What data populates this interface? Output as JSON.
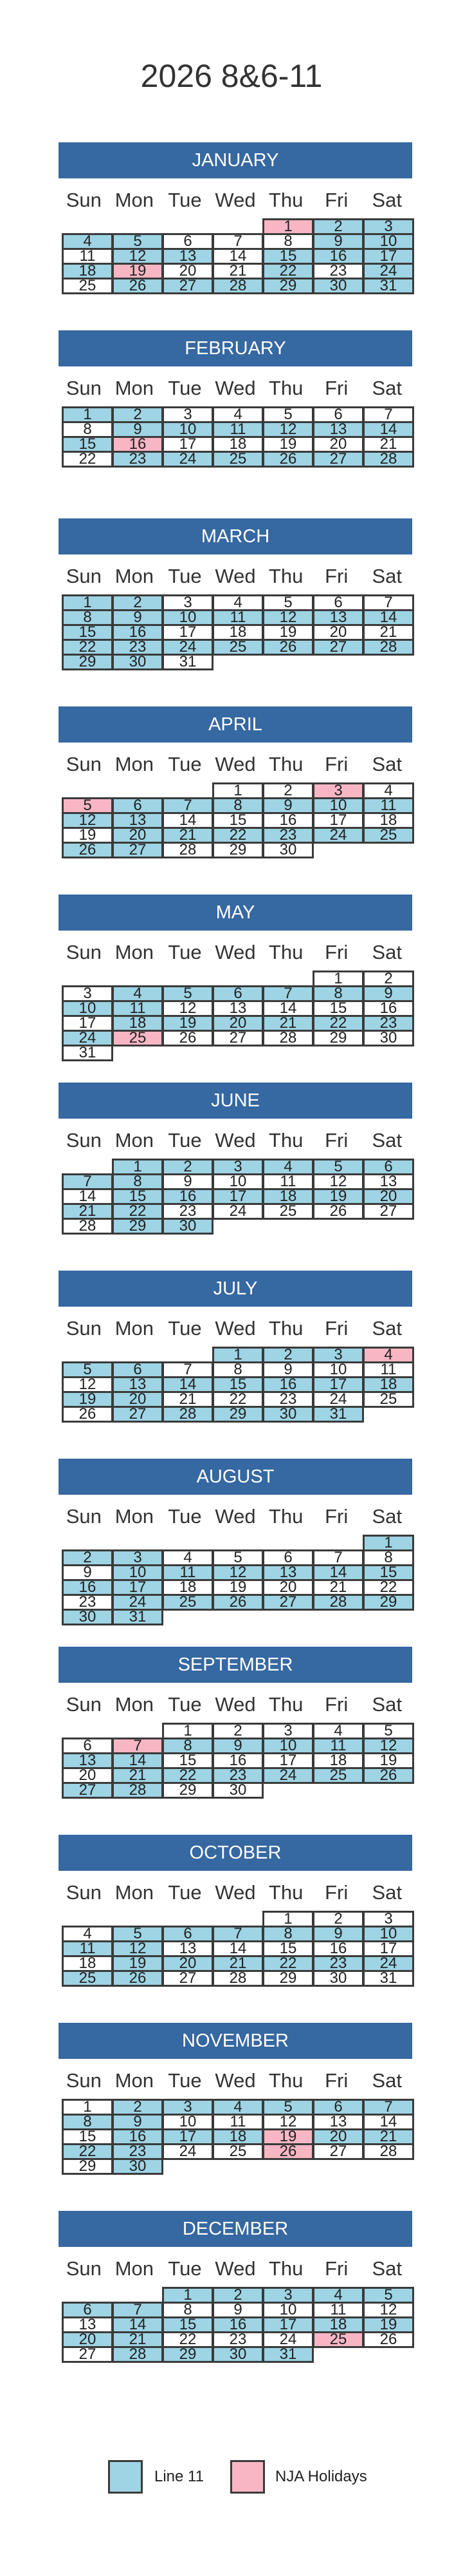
{
  "title": "2026 8&6-11",
  "weekdays": [
    "Sun",
    "Mon",
    "Tue",
    "Wed",
    "Thu",
    "Fri",
    "Sat"
  ],
  "colors": {
    "header": "#3668a1",
    "line": "#9ed4e4",
    "holiday": "#f8b6c4"
  },
  "legend": {
    "line_label": "Line 11",
    "holiday_label": "NJA Holidays"
  },
  "months": [
    {
      "name": "JANUARY",
      "start": 4,
      "days": 31,
      "line": [
        2,
        3,
        4,
        5,
        9,
        10,
        12,
        13,
        15,
        16,
        17,
        18,
        22,
        24,
        26,
        27,
        28,
        29,
        30,
        31
      ],
      "holidays": [
        1,
        19
      ]
    },
    {
      "name": "FEBRUARY",
      "start": 0,
      "days": 28,
      "line": [
        1,
        2,
        9,
        10,
        11,
        12,
        13,
        14,
        15,
        23,
        24,
        25,
        26,
        27,
        28
      ],
      "holidays": [
        16
      ]
    },
    {
      "name": "MARCH",
      "start": 0,
      "days": 31,
      "line": [
        1,
        2,
        8,
        9,
        10,
        11,
        12,
        13,
        14,
        15,
        16,
        22,
        23,
        24,
        25,
        26,
        27,
        28,
        29,
        30
      ],
      "holidays": []
    },
    {
      "name": "APRIL",
      "start": 3,
      "days": 30,
      "line": [
        6,
        7,
        8,
        9,
        10,
        11,
        12,
        13,
        20,
        21,
        22,
        23,
        24,
        25,
        26,
        27
      ],
      "holidays": [
        3,
        5
      ]
    },
    {
      "name": "MAY",
      "start": 5,
      "days": 31,
      "line": [
        4,
        5,
        6,
        7,
        8,
        9,
        10,
        11,
        18,
        19,
        20,
        21,
        22,
        23,
        24
      ],
      "holidays": [
        25
      ]
    },
    {
      "name": "JUNE",
      "start": 1,
      "days": 30,
      "line": [
        1,
        2,
        3,
        4,
        5,
        6,
        7,
        8,
        15,
        16,
        17,
        18,
        19,
        20,
        21,
        22,
        29,
        30
      ],
      "holidays": []
    },
    {
      "name": "JULY",
      "start": 3,
      "days": 31,
      "line": [
        1,
        2,
        3,
        5,
        6,
        13,
        14,
        15,
        16,
        17,
        18,
        19,
        20,
        27,
        28,
        29,
        30,
        31
      ],
      "holidays": [
        4
      ]
    },
    {
      "name": "AUGUST",
      "start": 6,
      "days": 31,
      "line": [
        1,
        2,
        3,
        10,
        11,
        12,
        13,
        14,
        15,
        16,
        17,
        24,
        25,
        26,
        27,
        28,
        29,
        30,
        31
      ],
      "holidays": []
    },
    {
      "name": "SEPTEMBER",
      "start": 2,
      "days": 30,
      "line": [
        8,
        9,
        10,
        11,
        12,
        13,
        14,
        21,
        22,
        23,
        24,
        25,
        26,
        27,
        28
      ],
      "holidays": [
        7
      ]
    },
    {
      "name": "OCTOBER",
      "start": 4,
      "days": 31,
      "line": [
        5,
        6,
        7,
        8,
        9,
        10,
        11,
        12,
        19,
        20,
        21,
        22,
        23,
        24,
        25,
        26
      ],
      "holidays": []
    },
    {
      "name": "NOVEMBER",
      "start": 0,
      "days": 30,
      "line": [
        2,
        3,
        4,
        5,
        6,
        7,
        8,
        9,
        16,
        17,
        18,
        20,
        21,
        22,
        23,
        30
      ],
      "holidays": [
        19,
        26
      ]
    },
    {
      "name": "DECEMBER",
      "start": 2,
      "days": 31,
      "line": [
        1,
        2,
        3,
        4,
        5,
        6,
        7,
        14,
        15,
        16,
        17,
        18,
        19,
        20,
        21,
        28,
        29,
        30,
        31
      ],
      "holidays": [
        25
      ]
    }
  ]
}
